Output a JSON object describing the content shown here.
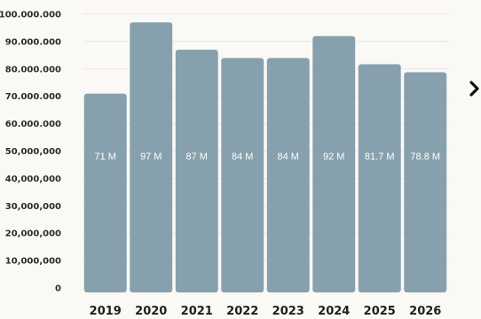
{
  "chart_data": {
    "type": "bar",
    "title": "",
    "xlabel": "",
    "ylabel": "",
    "categories": [
      "2019",
      "2020",
      "2021",
      "2022",
      "2023",
      "2024",
      "2025",
      "2026"
    ],
    "values": [
      71000000,
      97000000,
      87000000,
      84000000,
      84000000,
      92000000,
      81700000,
      78800000
    ],
    "data_labels": [
      "71 M",
      "97 M",
      "87 M",
      "84 M",
      "84 M",
      "92 M",
      "81.7 M",
      "78.8 M"
    ],
    "ylim": [
      0,
      100000000
    ],
    "yticks": [
      {
        "value": 0,
        "label": "0"
      },
      {
        "value": 10000000,
        "label": "10,000,000"
      },
      {
        "value": 20000000,
        "label": "20,000,000"
      },
      {
        "value": 30000000,
        "label": "30,000,000"
      },
      {
        "value": 40000000,
        "label": "40,000,000"
      },
      {
        "value": 50000000,
        "label": "50,000,000"
      },
      {
        "value": 60000000,
        "label": "60.000.000"
      },
      {
        "value": 70000000,
        "label": "70.000.000"
      },
      {
        "value": 80000000,
        "label": "80.000.000"
      },
      {
        "value": 90000000,
        "label": "90.000.000"
      },
      {
        "value": 100000000,
        "label": "100.000.000"
      }
    ],
    "grid": true,
    "bar_color": "#87a0ad"
  },
  "navigation": {
    "next_icon": "chevron-right-icon"
  }
}
